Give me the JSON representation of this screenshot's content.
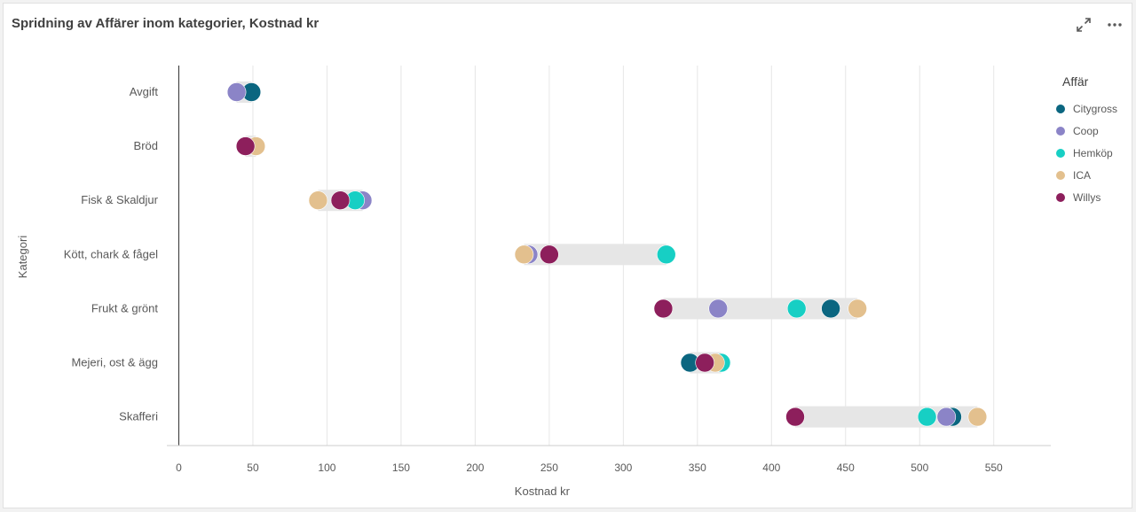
{
  "header": {
    "title": "Spridning av Affärer inom kategorier, Kostnad kr"
  },
  "toolbar": {
    "expand_icon": "expand-icon",
    "more_icon": "more-horizontal-icon"
  },
  "legend": {
    "title": "Affär"
  },
  "colors": {
    "Citygross": "#0b6680",
    "Coop": "#8b84c7",
    "Hemköp": "#17cfc4",
    "ICA": "#e3c08e",
    "Willys": "#8d1f5c",
    "range_band": "#e6e6e6"
  },
  "chart_data": {
    "type": "scatter",
    "orientation": "horizontal",
    "title": "Spridning av Affärer inom kategorier, Kostnad kr",
    "xlabel": "Kostnad kr",
    "ylabel": "Kategori",
    "xlim": [
      -5,
      590
    ],
    "xticks": [
      0,
      50,
      100,
      150,
      200,
      250,
      300,
      350,
      400,
      450,
      500,
      550
    ],
    "grid": true,
    "legend_title": "Affär",
    "legend_position": "right",
    "categories": [
      "Avgift",
      "Bröd",
      "Fisk & Skaldjur",
      "Kött, chark & fågel",
      "Frukt & grönt",
      "Mejeri, ost & ägg",
      "Skafferi"
    ],
    "series": [
      {
        "name": "Citygross",
        "values": [
          49,
          null,
          null,
          233,
          440,
          345,
          522
        ]
      },
      {
        "name": "Coop",
        "values": [
          39,
          null,
          124,
          236,
          364,
          365,
          518
        ]
      },
      {
        "name": "Hemköp",
        "values": [
          null,
          null,
          119,
          329,
          417,
          366,
          505
        ]
      },
      {
        "name": "ICA",
        "values": [
          null,
          52,
          94,
          233,
          458,
          362,
          539
        ]
      },
      {
        "name": "Willys",
        "values": [
          null,
          45,
          109,
          250,
          327,
          355,
          416
        ]
      }
    ]
  }
}
